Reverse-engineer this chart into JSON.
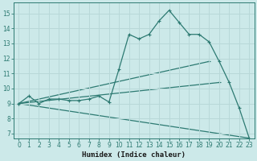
{
  "xlabel": "Humidex (Indice chaleur)",
  "background_color": "#cce9e9",
  "grid_color": "#b8d8d8",
  "line_color": "#2d7a72",
  "xlim": [
    -0.5,
    23.5
  ],
  "ylim": [
    6.7,
    15.7
  ],
  "xticks": [
    0,
    1,
    2,
    3,
    4,
    5,
    6,
    7,
    8,
    9,
    10,
    11,
    12,
    13,
    14,
    15,
    16,
    17,
    18,
    19,
    20,
    21,
    22,
    23
  ],
  "yticks": [
    7,
    8,
    9,
    10,
    11,
    12,
    13,
    14,
    15
  ],
  "main_series": {
    "x": [
      0,
      1,
      2,
      3,
      4,
      5,
      6,
      7,
      8,
      9,
      10,
      11,
      12,
      13,
      14,
      15,
      16,
      17,
      18,
      19,
      20,
      21,
      22,
      23
    ],
    "y": [
      9.0,
      9.5,
      9.0,
      9.3,
      9.3,
      9.2,
      9.2,
      9.3,
      9.5,
      9.1,
      11.3,
      13.6,
      13.3,
      13.6,
      14.5,
      15.2,
      14.4,
      13.6,
      13.6,
      13.1,
      11.8,
      10.4,
      8.7,
      6.7
    ]
  },
  "straight_lines": [
    {
      "x": [
        0,
        19
      ],
      "y": [
        9.0,
        11.8
      ]
    },
    {
      "x": [
        0,
        20
      ],
      "y": [
        9.0,
        10.4
      ]
    },
    {
      "x": [
        0,
        23
      ],
      "y": [
        9.0,
        6.7
      ]
    }
  ]
}
